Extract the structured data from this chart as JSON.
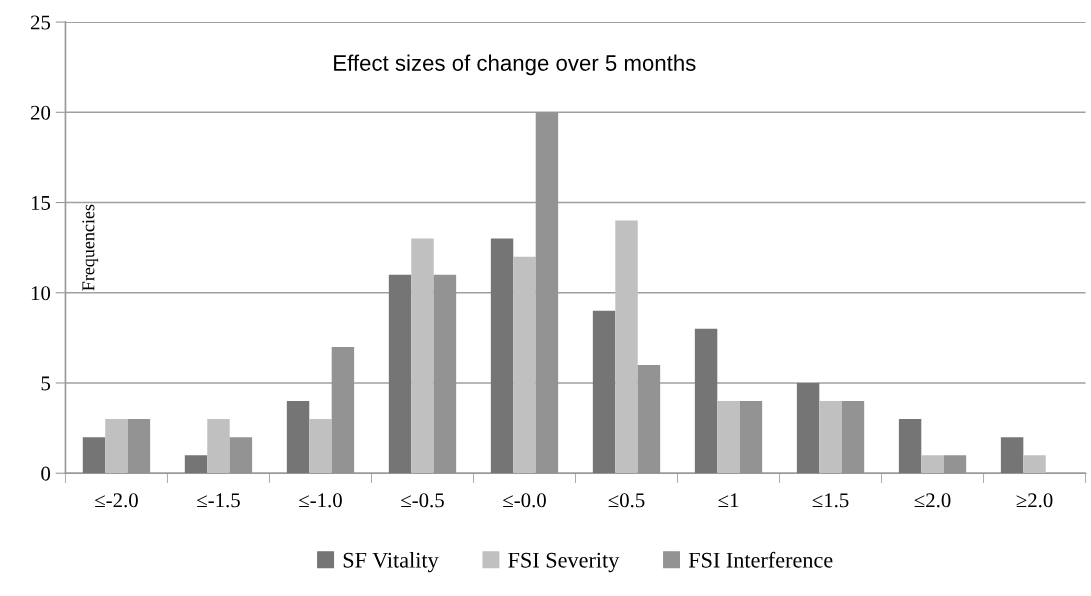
{
  "chart_data": {
    "type": "bar",
    "title": "Effect sizes of change over 5 months",
    "ylabel": "Frequencies",
    "categories": [
      "≤-2.0",
      "≤-1.5",
      "≤-1.0",
      "≤-0.5",
      "≤-0.0",
      "≤0.5",
      "≤1",
      "≤1.5",
      "≤2.0",
      "≥2.0"
    ],
    "series": [
      {
        "name": "SF Vitality",
        "color": "#757575",
        "values": [
          2,
          1,
          4,
          11,
          13,
          9,
          8,
          5,
          3,
          2
        ]
      },
      {
        "name": "FSI Severity",
        "color": "#c0c0c0",
        "values": [
          3,
          3,
          3,
          13,
          12,
          14,
          4,
          4,
          1,
          1
        ]
      },
      {
        "name": "FSI Interference",
        "color": "#939393",
        "values": [
          3,
          2,
          7,
          11,
          20,
          6,
          4,
          4,
          1,
          0
        ]
      }
    ],
    "ylim": [
      0,
      25
    ],
    "yticks": [
      0,
      5,
      10,
      15,
      20,
      25
    ],
    "grid": "y",
    "legend": "bottom"
  }
}
